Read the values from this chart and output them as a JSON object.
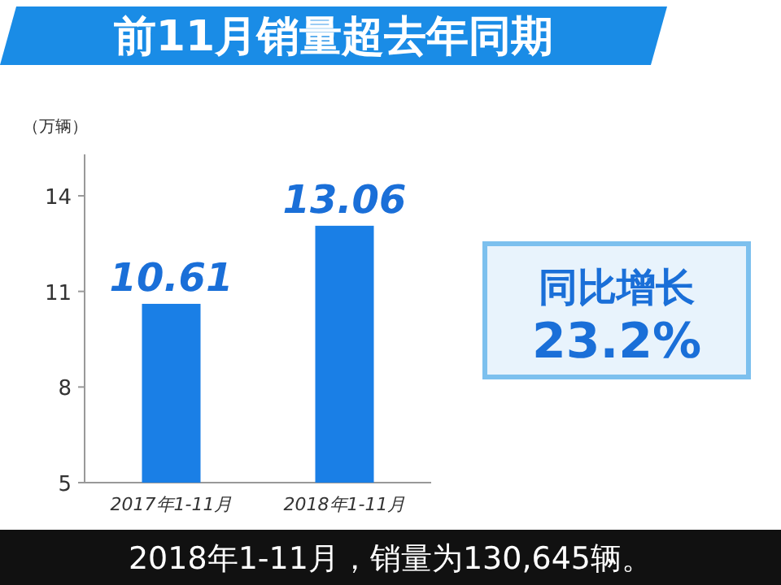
{
  "chart_data": {
    "type": "bar",
    "title": "前11月销量超去年同期",
    "ylabel": "（万辆）",
    "categories": [
      "2017年1-11月",
      "2018年1-11月"
    ],
    "values": [
      10.61,
      13.06
    ],
    "color": "#1a7fe6",
    "data_labels": true,
    "ylim": [
      5,
      15.3
    ],
    "yticks": [
      5,
      8,
      11,
      14
    ],
    "annotations": [
      "同比增长",
      "23.2%",
      "2018年1-11月，销量为130,645辆。"
    ]
  }
}
